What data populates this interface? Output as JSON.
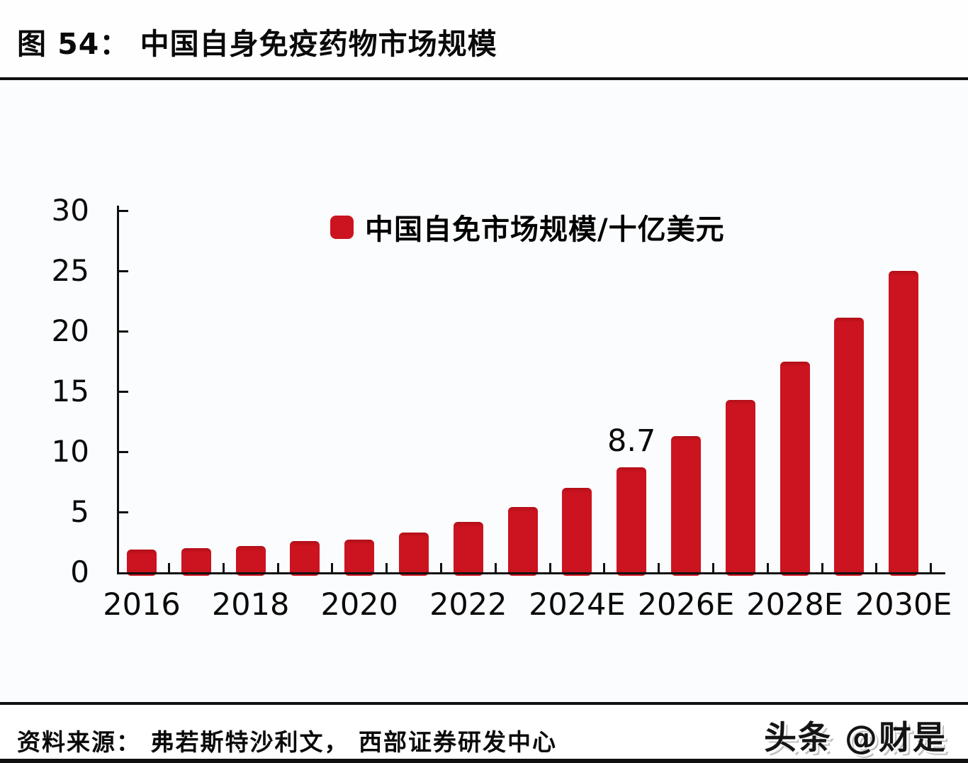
{
  "figure": {
    "title": "图 54：  中国自身免疫药物市场规模",
    "source_note": "资料来源：  弗若斯特沙利文，  西部证券研发中心",
    "watermark": "头条 @财是"
  },
  "legend": {
    "label": "中国自免市场规模/十亿美元"
  },
  "colors": {
    "bar": "#cb1420",
    "axis": "#101010",
    "chart_background": "#fbfcfe"
  },
  "chart_data": {
    "type": "bar",
    "title": "中国自身免疫药物市场规模",
    "series_name": "中国自免市场规模/十亿美元",
    "unit": "十亿美元",
    "categories": [
      "2016",
      "2017",
      "2018",
      "2019",
      "2020",
      "2021",
      "2022",
      "2023",
      "2024",
      "2025",
      "2026",
      "2027",
      "2028",
      "2029",
      "2030"
    ],
    "values": [
      1.9,
      2.0,
      2.2,
      2.6,
      2.7,
      3.3,
      4.2,
      5.4,
      7.0,
      8.7,
      11.3,
      14.3,
      17.5,
      21.1,
      25.0
    ],
    "x_tick_labels": [
      "2016",
      "2018",
      "2020",
      "2022",
      "2024E",
      "2026E",
      "2028E",
      "2030E"
    ],
    "y_ticks": [
      0,
      5,
      10,
      15,
      20,
      25,
      30
    ],
    "ylim": [
      0,
      30
    ],
    "grid": false,
    "legend_position": "top",
    "data_label": {
      "index": 9,
      "text": "8.7"
    }
  }
}
